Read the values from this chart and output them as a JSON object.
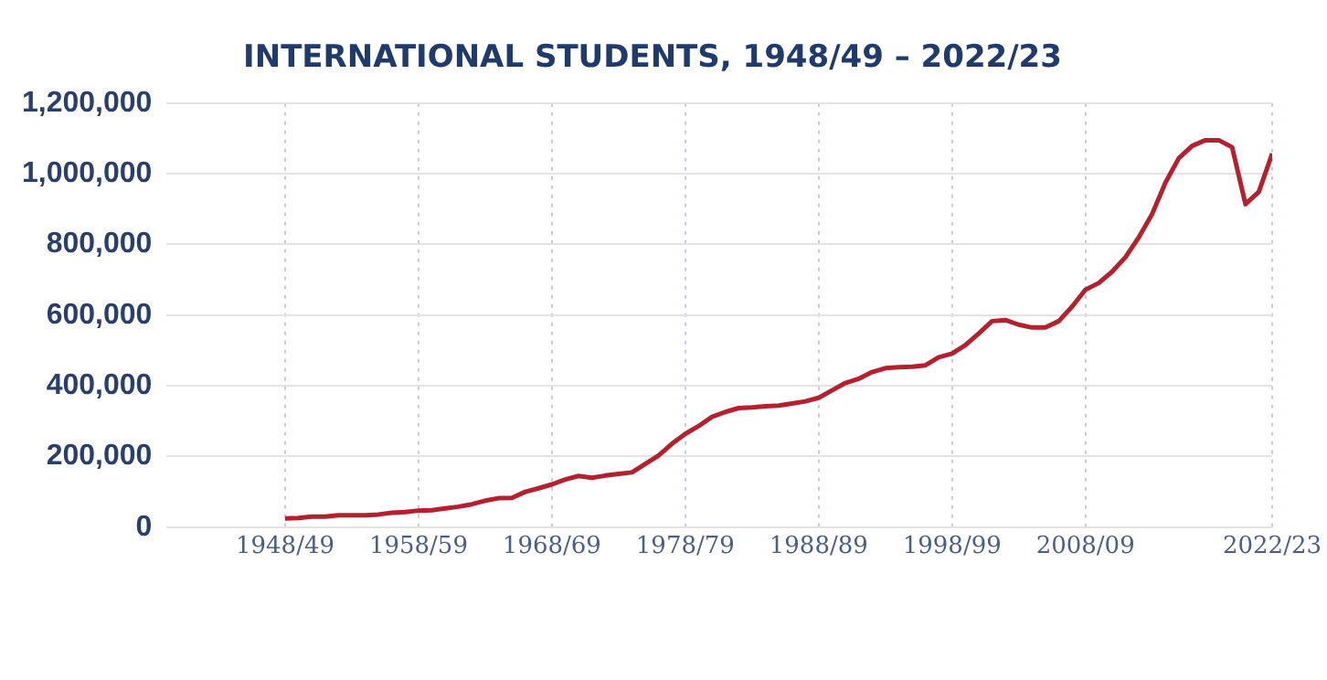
{
  "chart_data": {
    "type": "line",
    "title": "INTERNATIONAL STUDENTS, 1948/49 – 2022/23",
    "categories": [
      "1948/49",
      null,
      null,
      null,
      null,
      null,
      null,
      null,
      null,
      null,
      "1958/59",
      null,
      null,
      null,
      null,
      null,
      null,
      null,
      null,
      null,
      "1968/69",
      null,
      null,
      null,
      null,
      null,
      null,
      null,
      null,
      null,
      "1978/79",
      null,
      null,
      null,
      null,
      null,
      null,
      null,
      null,
      null,
      "1988/89",
      null,
      null,
      null,
      null,
      null,
      null,
      null,
      null,
      null,
      "1998/99",
      null,
      null,
      null,
      null,
      null,
      null,
      null,
      null,
      null,
      "2008/09",
      null,
      null,
      null,
      null,
      null,
      null,
      null,
      null,
      null,
      null,
      null,
      null,
      null,
      "2022/23"
    ],
    "series": [
      {
        "color": "#b5202e",
        "values": [
          25000,
          26000,
          30000,
          30000,
          34000,
          34000,
          34000,
          36000,
          41000,
          43000,
          47000,
          48000,
          53000,
          58000,
          65000,
          75000,
          82000,
          83000,
          100000,
          110000,
          121000,
          135000,
          145000,
          140000,
          146000,
          151000,
          155000,
          179000,
          203000,
          236000,
          264000,
          286000,
          312000,
          326000,
          337000,
          339000,
          342000,
          344000,
          350000,
          356000,
          366000,
          387000,
          408000,
          420000,
          439000,
          450000,
          453000,
          454000,
          458000,
          481000,
          491000,
          515000,
          548000,
          583000,
          586000,
          573000,
          565000,
          565000,
          583000,
          624000,
          672000,
          691000,
          723000,
          764000,
          820000,
          886000,
          975000,
          1044000,
          1079000,
          1095000,
          1095000,
          1075000,
          914000,
          949000,
          1057000
        ]
      }
    ],
    "ylim": [
      0,
      1200000
    ],
    "yticks": [
      0,
      {
        "value": 200000,
        "label": "200,000"
      },
      {
        "value": 400000,
        "label": "400,000"
      },
      {
        "value": 600000,
        "label": "600,000"
      },
      {
        "value": 800000,
        "label": "800,000"
      },
      {
        "value": 1000000,
        "label": "1,000,000"
      },
      {
        "value": 1200000,
        "label": "1,200,000"
      }
    ],
    "grid": true,
    "legend": false,
    "marker": "none",
    "line_style": "solid"
  }
}
